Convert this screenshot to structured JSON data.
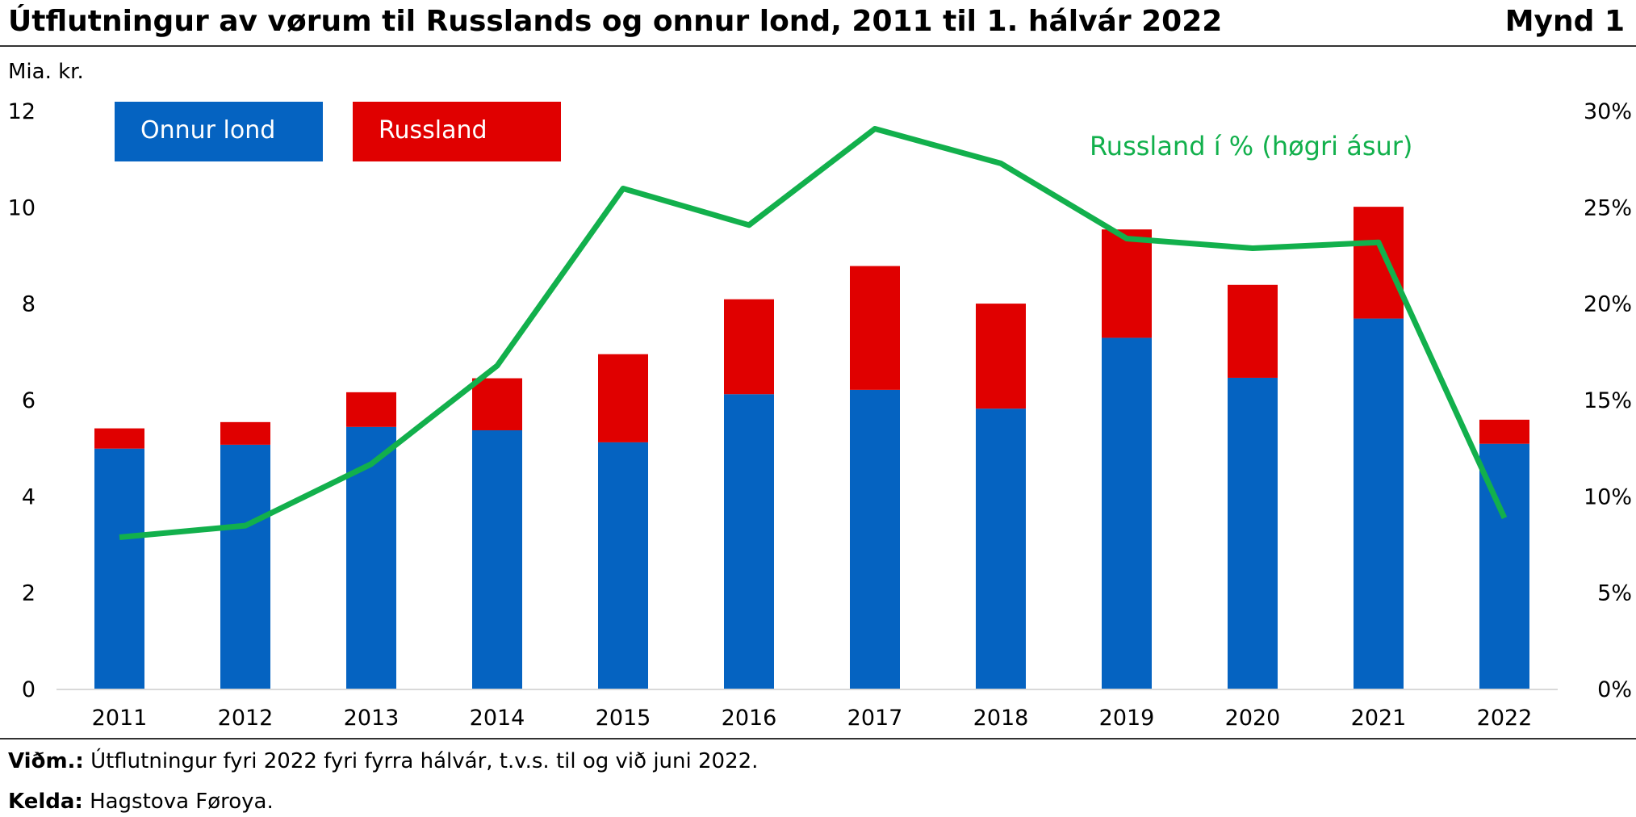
{
  "header": {
    "title": "Útflutningur av vørum til Russlands og onnur lond, 2011 til 1. hálvár 2022",
    "figure_label": "Mynd 1"
  },
  "footer": {
    "note_label": "Viðm.:",
    "note_text": "Útflutningur fyri 2022 fyri fyrra hálvár, t.v.s. til og við juni 2022.",
    "source_label": "Kelda:",
    "source_text": "Hagstova Føroya."
  },
  "colors": {
    "onnur": "#0563c1",
    "russland": "#e00000",
    "line": "#12b04c"
  },
  "chart_data": {
    "type": "bar",
    "stacked": true,
    "ylabel": "Mia. kr.",
    "ylim": [
      0,
      12
    ],
    "y_ticks": [
      "0",
      "2",
      "4",
      "6",
      "8",
      "10",
      "12"
    ],
    "y2lim": [
      0,
      30
    ],
    "y2_ticks": [
      "0%",
      "5%",
      "10%",
      "15%",
      "20%",
      "25%",
      "30%"
    ],
    "categories": [
      "2011",
      "2012",
      "2013",
      "2014",
      "2015",
      "2016",
      "2017",
      "2018",
      "2019",
      "2020",
      "2021",
      "2022"
    ],
    "series": [
      {
        "name": "Onnur lond",
        "axis": "left",
        "kind": "bar",
        "values": [
          5.0,
          5.08,
          5.45,
          5.38,
          5.13,
          6.13,
          6.22,
          5.83,
          7.3,
          6.47,
          7.7,
          5.1
        ]
      },
      {
        "name": "Russland",
        "axis": "left",
        "kind": "bar",
        "values": [
          0.42,
          0.47,
          0.72,
          1.08,
          1.83,
          1.97,
          2.57,
          2.18,
          2.25,
          1.93,
          2.32,
          0.5
        ]
      },
      {
        "name": "Russland í % (høgri ásur)",
        "axis": "right",
        "kind": "line",
        "values": [
          7.9,
          8.5,
          11.7,
          16.8,
          26.0,
          24.1,
          29.1,
          27.3,
          23.4,
          22.9,
          23.2,
          8.9
        ]
      }
    ],
    "legend_position": "top-left",
    "grid": false
  }
}
